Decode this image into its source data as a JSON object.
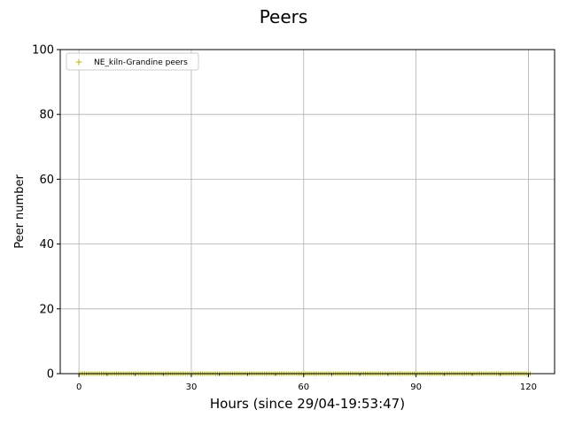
{
  "chart_data": {
    "type": "scatter",
    "title": "Peers",
    "xlabel": "Hours (since 29/04-19:53:47)",
    "ylabel": "Peer number",
    "xlim": [
      -5,
      127
    ],
    "ylim": [
      0,
      100
    ],
    "xticks": [
      0,
      30,
      60,
      90,
      120
    ],
    "xticks_minor": [
      7.5,
      15,
      22.5,
      37.5,
      45,
      52.5,
      67.5,
      75,
      82.5,
      97.5,
      105,
      112.5
    ],
    "yticks": [
      0,
      20,
      40,
      60,
      80,
      100
    ],
    "grid": true,
    "legend_position": "top-left",
    "series": [
      {
        "name": "NE_kiln-Grandine peers",
        "color": "#b5b500",
        "marker": "+",
        "x_start": 0,
        "x_end": 120.5,
        "x_step": 0.5,
        "y_value": 0
      }
    ]
  }
}
